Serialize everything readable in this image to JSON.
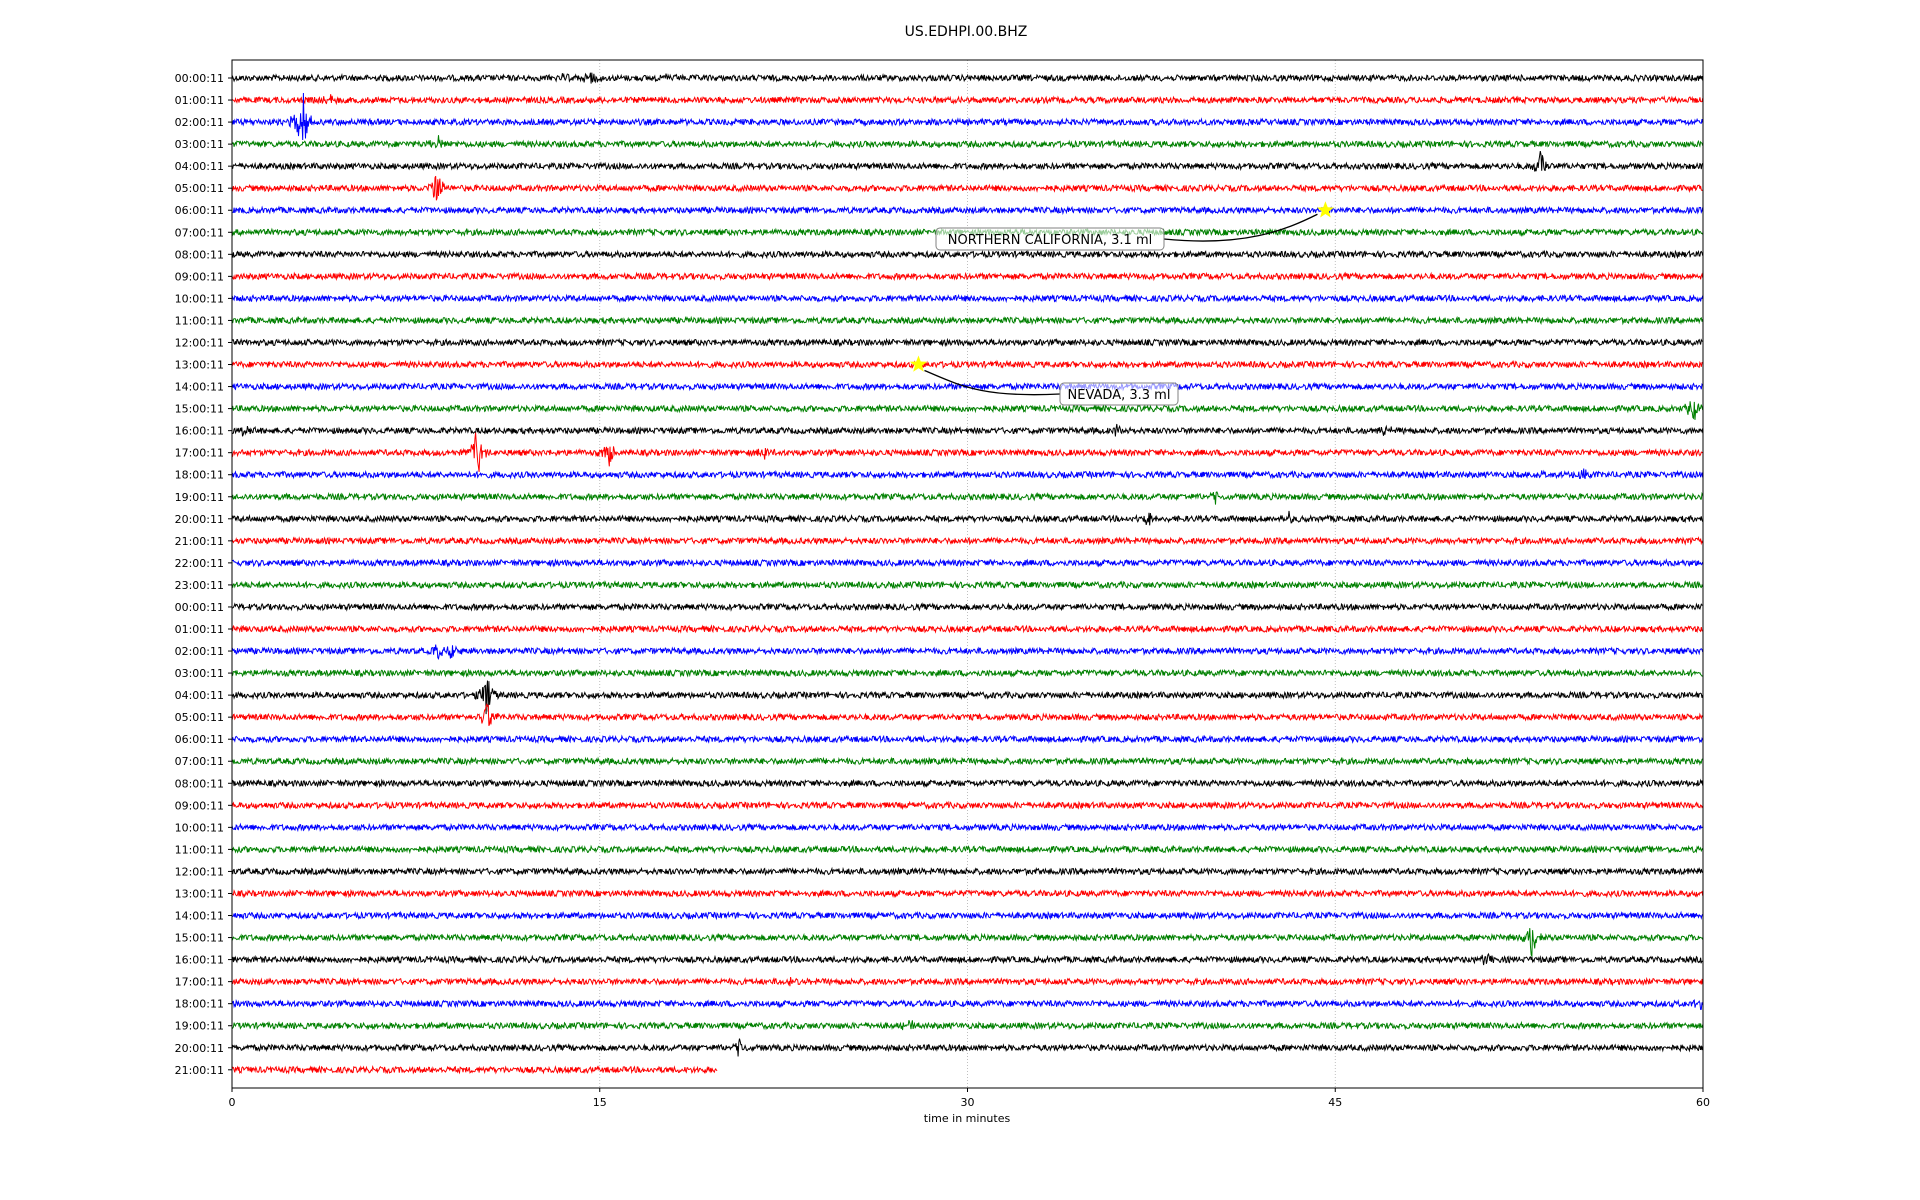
{
  "chart_data": {
    "type": "line",
    "title": "US.EDHPI.00.BHZ",
    "xlabel": "time in minutes",
    "ylabel": "",
    "xlim": [
      0,
      60
    ],
    "xticks": [
      "0",
      "15",
      "30",
      "45",
      "60"
    ],
    "xtick_values": [
      0,
      15,
      30,
      45,
      60
    ],
    "grid": "vertical dotted at 15, 30, 45",
    "colors": [
      "#000000",
      "#ff0000",
      "#0000ff",
      "#008000"
    ],
    "trace_labels": [
      "00:00:11",
      "01:00:11",
      "02:00:11",
      "03:00:11",
      "04:00:11",
      "05:00:11",
      "06:00:11",
      "07:00:11",
      "08:00:11",
      "09:00:11",
      "10:00:11",
      "11:00:11",
      "12:00:11",
      "13:00:11",
      "14:00:11",
      "15:00:11",
      "16:00:11",
      "17:00:11",
      "18:00:11",
      "19:00:11",
      "20:00:11",
      "21:00:11",
      "22:00:11",
      "23:00:11",
      "00:00:11",
      "01:00:11",
      "02:00:11",
      "03:00:11",
      "04:00:11",
      "05:00:11",
      "06:00:11",
      "07:00:11",
      "08:00:11",
      "09:00:11",
      "10:00:11",
      "11:00:11",
      "12:00:11",
      "13:00:11",
      "14:00:11",
      "15:00:11",
      "16:00:11",
      "17:00:11",
      "18:00:11",
      "19:00:11",
      "20:00:11",
      "21:00:11"
    ],
    "last_trace_end_minute": 19.8,
    "events": [
      {
        "trace": 0,
        "minute": 13.6,
        "amp": 6
      },
      {
        "trace": 0,
        "minute": 14.6,
        "amp": 9
      },
      {
        "trace": 0,
        "minute": 17.8,
        "amp": 5
      },
      {
        "trace": 1,
        "minute": 4.0,
        "amp": 8
      },
      {
        "trace": 2,
        "minute": 2.6,
        "amp": 14
      },
      {
        "trace": 2,
        "minute": 2.9,
        "amp": 35
      },
      {
        "trace": 3,
        "minute": 8.4,
        "amp": 8
      },
      {
        "trace": 4,
        "minute": 53.4,
        "amp": 18
      },
      {
        "trace": 5,
        "minute": 8.4,
        "amp": 25
      },
      {
        "trace": 15,
        "minute": 59.6,
        "amp": 16
      },
      {
        "trace": 16,
        "minute": 0.5,
        "amp": 6
      },
      {
        "trace": 16,
        "minute": 36.1,
        "amp": 8
      },
      {
        "trace": 16,
        "minute": 47.1,
        "amp": 6
      },
      {
        "trace": 17,
        "minute": 10.0,
        "amp": 30
      },
      {
        "trace": 17,
        "minute": 15.4,
        "amp": 15
      },
      {
        "trace": 17,
        "minute": 21.7,
        "amp": 8
      },
      {
        "trace": 18,
        "minute": 53.4,
        "amp": 9
      },
      {
        "trace": 18,
        "minute": 55.1,
        "amp": 9
      },
      {
        "trace": 19,
        "minute": 40.1,
        "amp": 6
      },
      {
        "trace": 20,
        "minute": 37.4,
        "amp": 8
      },
      {
        "trace": 20,
        "minute": 43.1,
        "amp": 6
      },
      {
        "trace": 26,
        "minute": 8.4,
        "amp": 9
      },
      {
        "trace": 26,
        "minute": 9.0,
        "amp": 9
      },
      {
        "trace": 28,
        "minute": 10.4,
        "amp": 25
      },
      {
        "trace": 29,
        "minute": 10.4,
        "amp": 18
      },
      {
        "trace": 39,
        "minute": 53.0,
        "amp": 22
      },
      {
        "trace": 40,
        "minute": 51.2,
        "amp": 8
      },
      {
        "trace": 41,
        "minute": 22.8,
        "amp": 6
      },
      {
        "trace": 42,
        "minute": 59.9,
        "amp": 6
      },
      {
        "trace": 43,
        "minute": 27.6,
        "amp": 8
      },
      {
        "trace": 44,
        "minute": 20.7,
        "amp": 9
      }
    ],
    "annotations": [
      {
        "text": "NORTHERN CALIFORNIA, 3.1 ml",
        "trace": 6,
        "minute": 44.6
      },
      {
        "text": "NEVADA, 3.3 ml",
        "trace": 13,
        "minute": 28.0
      }
    ],
    "marker_color": "#ffff00"
  }
}
